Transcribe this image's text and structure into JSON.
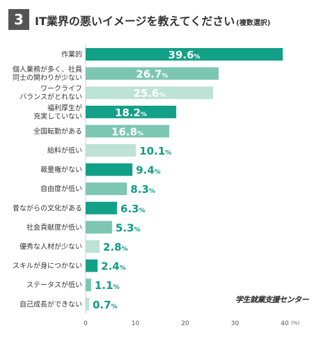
{
  "header": {
    "number": "3",
    "title": "IT業界の悪いイメージを教えてください",
    "subtitle": "(複数選択)"
  },
  "source": "学生就業支援センター",
  "colors": {
    "dark": "#12a088",
    "mid": "#7cc6b2",
    "light": "#bde2d6",
    "value_text": "#0e9c85"
  },
  "chart_data": {
    "type": "bar",
    "orientation": "horizontal",
    "categories": [
      "作業的",
      "個人業務が多く、社員\n同士の関わりが少ない",
      "ワークライフ\nバランスがとれない",
      "福利厚生が\n充実していない",
      "全国転勤がある",
      "給料が低い",
      "裁量権がない",
      "自由度が低い",
      "昔ながらの文化がある",
      "社会貢献度が低い",
      "優秀な人材が少ない",
      "スキルが身につかない",
      "ステータスが低い",
      "自己成長ができない"
    ],
    "values": [
      39.6,
      26.7,
      25.6,
      18.2,
      16.8,
      10.1,
      9.4,
      8.3,
      6.3,
      5.3,
      2.8,
      2.4,
      1.1,
      0.7
    ],
    "bar_colors": [
      "dark",
      "mid",
      "light",
      "dark",
      "mid",
      "light",
      "dark",
      "mid",
      "dark",
      "mid",
      "light",
      "dark",
      "mid",
      "light"
    ],
    "value_unit": "%",
    "xlim": [
      0,
      40
    ],
    "xticks": [
      "0",
      "10",
      "20",
      "30",
      "40"
    ],
    "x_unit_label": "(%)",
    "grid": false
  }
}
